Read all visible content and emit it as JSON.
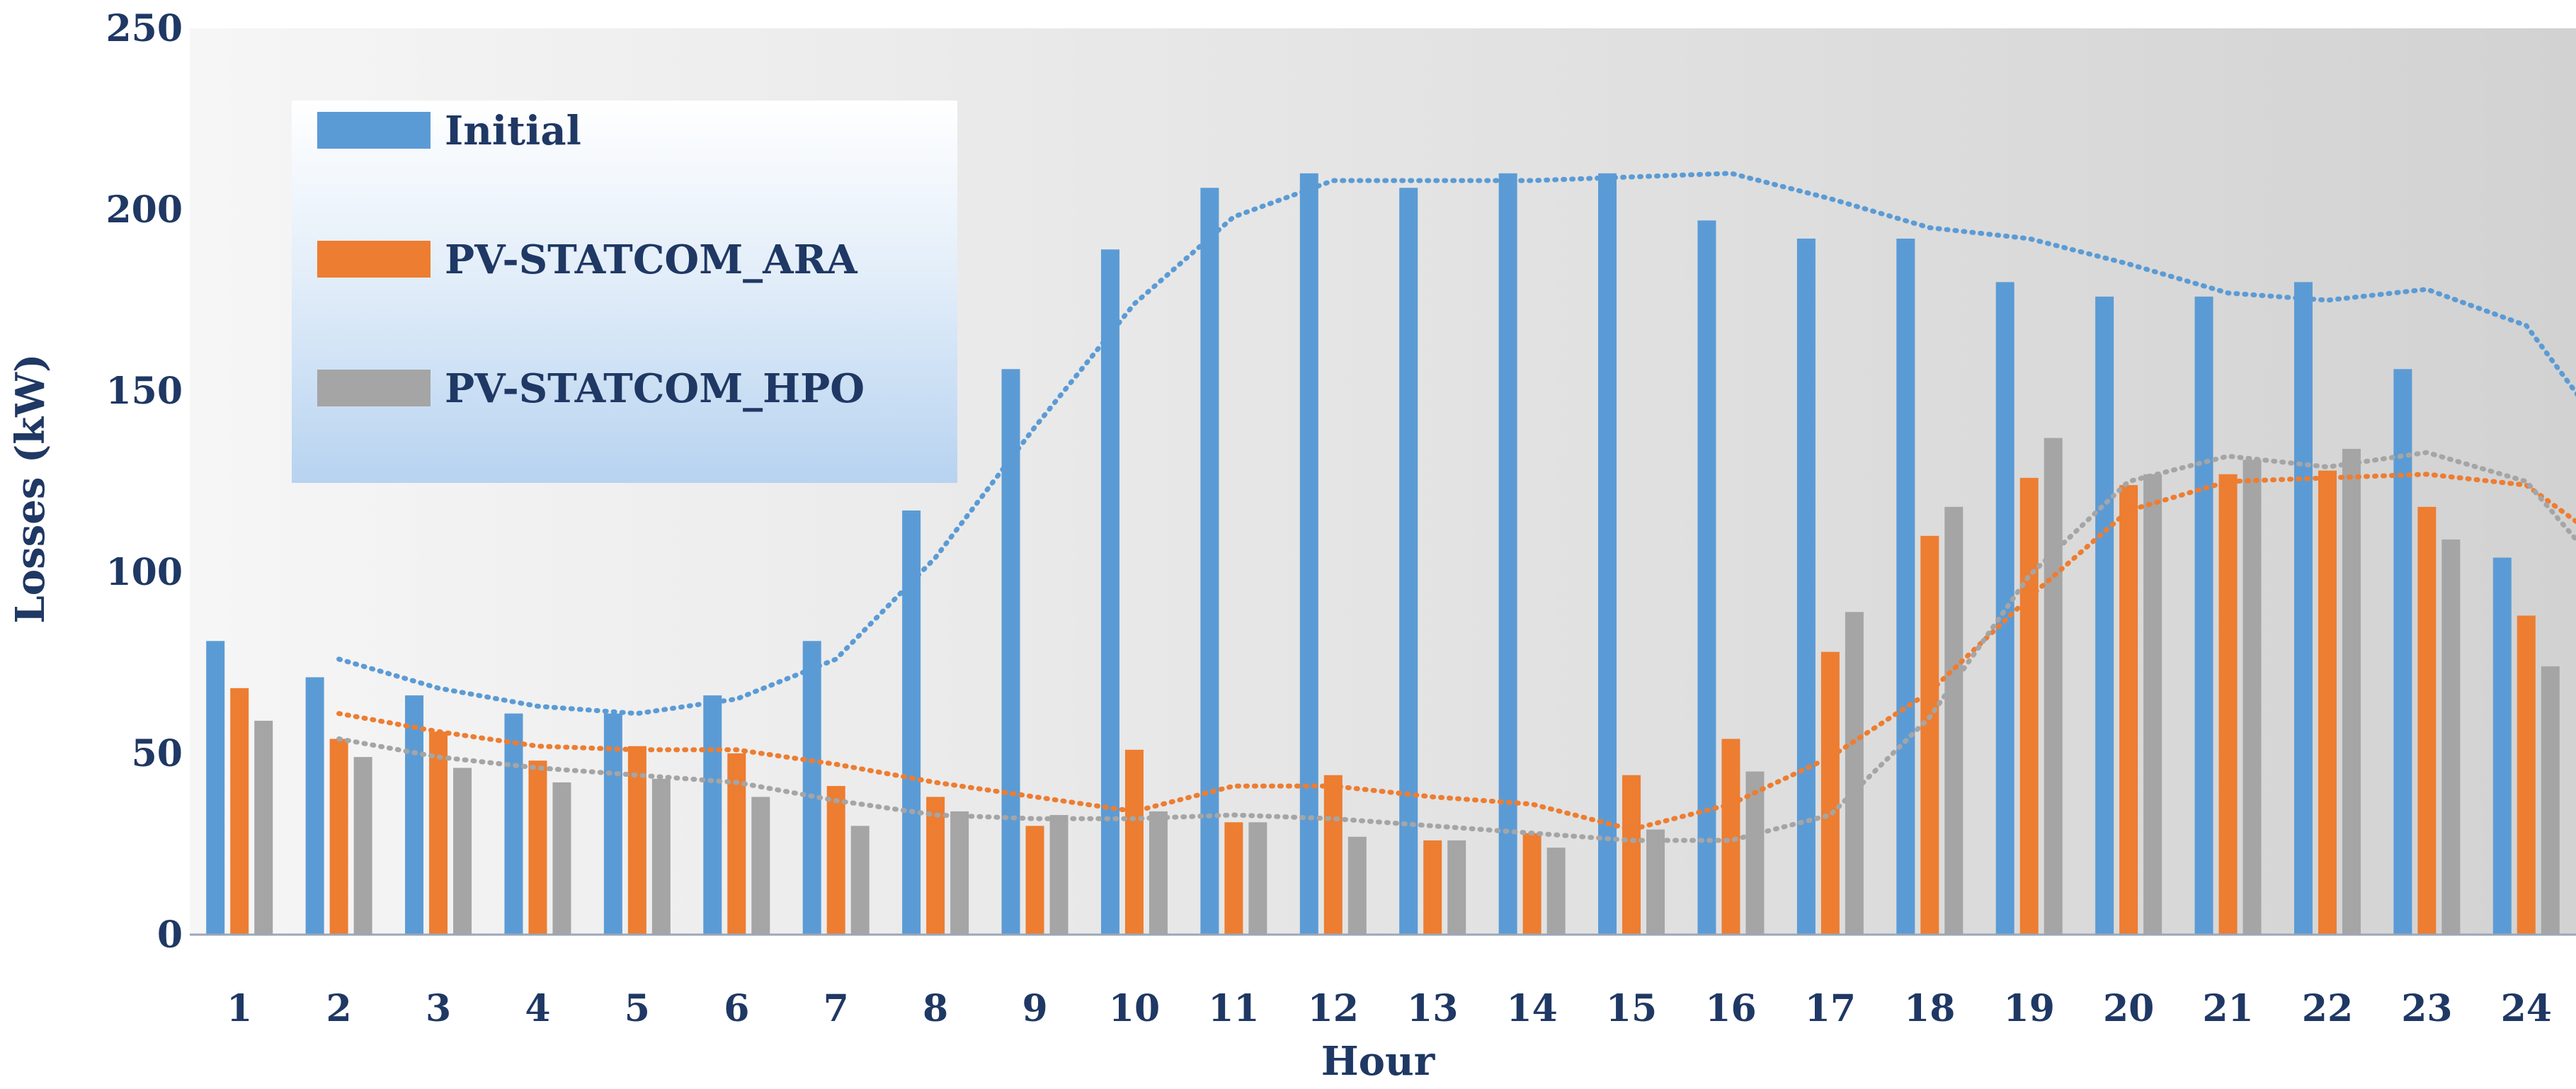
{
  "colors": {
    "initial": "#5b9bd5",
    "ara": "#ed7d31",
    "hpo": "#a5a5a5",
    "text": "#1f3864",
    "axis": "#9aa7b8"
  },
  "chart_data": {
    "type": "bar",
    "xlabel": "Hour",
    "ylabel": "Losses (kW)",
    "ylim": [
      0,
      250
    ],
    "yticks": [
      0,
      50,
      100,
      150,
      200,
      250
    ],
    "grid": false,
    "legend_position": "top-left",
    "categories": [
      "1",
      "2",
      "3",
      "4",
      "5",
      "6",
      "7",
      "8",
      "9",
      "10",
      "11",
      "12",
      "13",
      "14",
      "15",
      "16",
      "17",
      "18",
      "19",
      "20",
      "21",
      "22",
      "23",
      "24"
    ],
    "series": [
      {
        "name": "Initial",
        "values": [
          81,
          71,
          66,
          61,
          61,
          66,
          81,
          117,
          156,
          189,
          206,
          210,
          206,
          210,
          210,
          197,
          192,
          192,
          180,
          176,
          176,
          180,
          156,
          104
        ]
      },
      {
        "name": "PV-STATCOM_ARA",
        "values": [
          68,
          54,
          56,
          48,
          52,
          50,
          41,
          38,
          30,
          51,
          31,
          44,
          26,
          28,
          44,
          54,
          78,
          110,
          126,
          124,
          127,
          128,
          118,
          88
        ]
      },
      {
        "name": "PV-STATCOM_HPO",
        "values": [
          59,
          49,
          46,
          42,
          43,
          38,
          30,
          34,
          33,
          34,
          31,
          27,
          26,
          24,
          29,
          45,
          89,
          118,
          137,
          127,
          131,
          134,
          109,
          74
        ]
      }
    ],
    "trendlines": [
      {
        "series": "Initial",
        "style": "dotted",
        "values": [
          76,
          68,
          63,
          61,
          65,
          76,
          104,
          140,
          174,
          198,
          208,
          208,
          208,
          209,
          210,
          203,
          195,
          192,
          185,
          177,
          175,
          178,
          168,
          131
        ]
      },
      {
        "series": "PV-STATCOM_ARA",
        "style": "dotted",
        "values": [
          61,
          56,
          52,
          51,
          51,
          47,
          42,
          38,
          34,
          41,
          41,
          38,
          36,
          29,
          36,
          49,
          67,
          93,
          117,
          125,
          126,
          127,
          124,
          104
        ]
      },
      {
        "series": "PV-STATCOM_HPO",
        "style": "dotted",
        "values": [
          54,
          49,
          46,
          44,
          42,
          37,
          33,
          32,
          32,
          33,
          32,
          30,
          28,
          26,
          26,
          33,
          60,
          99,
          125,
          132,
          129,
          133,
          125,
          93
        ]
      }
    ]
  }
}
